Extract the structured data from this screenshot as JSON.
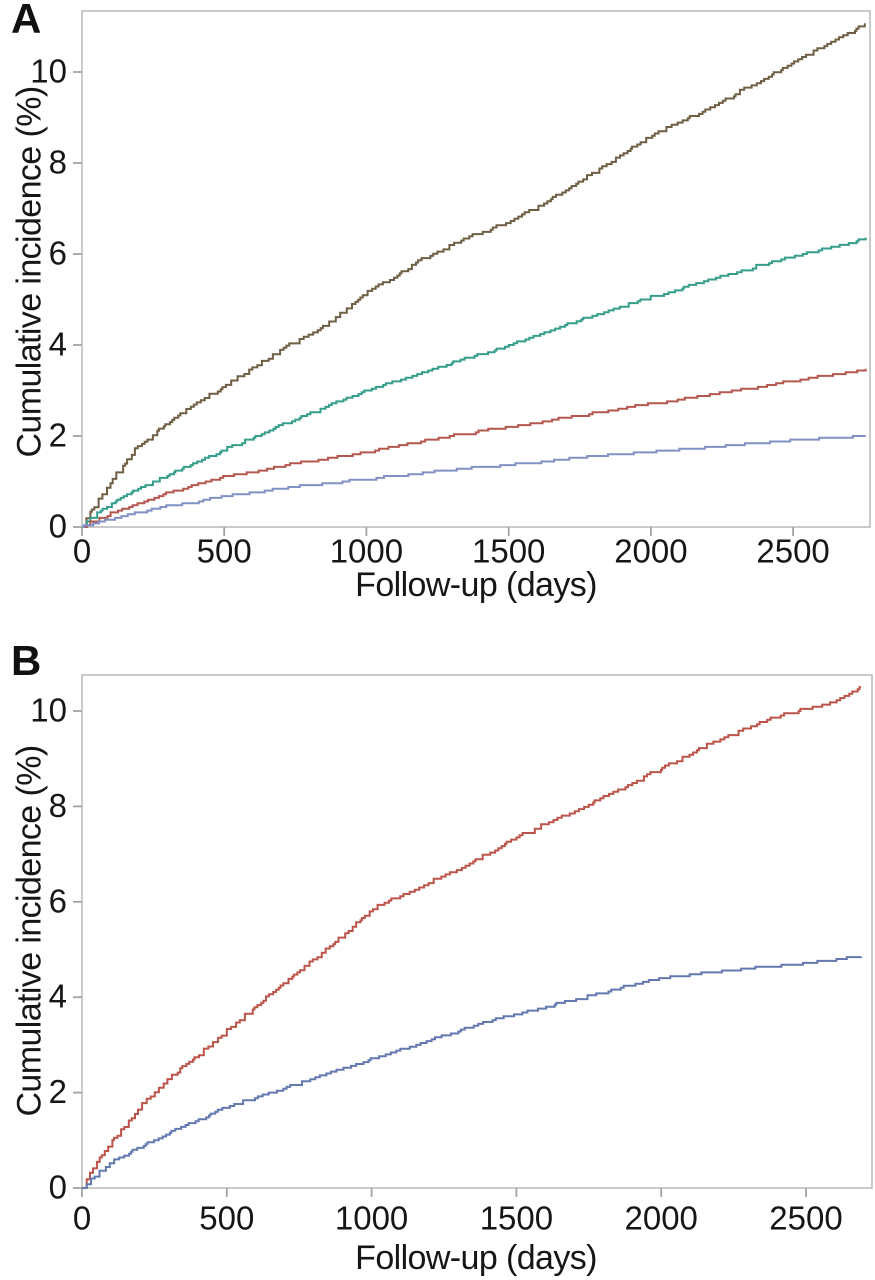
{
  "colors": {
    "frame": "#bdbdbd",
    "tick": "#a3a3a3",
    "text": "#161616",
    "background": "#ffffff"
  },
  "chart_data": [
    {
      "panel_label": "A",
      "type": "line",
      "line_style": "step",
      "title": "",
      "xlabel": "Follow-up (days)",
      "ylabel": "Cumulative incidence (%)",
      "x_ticks": [
        0,
        500,
        1000,
        1500,
        2000,
        2500
      ],
      "y_ticks": [
        0,
        2,
        4,
        6,
        8,
        10
      ],
      "xlim": [
        0,
        2766
      ],
      "ylim": [
        0,
        11.35
      ],
      "grid": false,
      "legend": "none",
      "series": [
        {
          "name": "curve-brown",
          "color": "#6e5f44",
          "data": [
            [
              0,
              0
            ],
            [
              25,
              0.3
            ],
            [
              100,
              1.0
            ],
            [
              200,
              1.8
            ],
            [
              350,
              2.5
            ],
            [
              500,
              3.1
            ],
            [
              700,
              3.9
            ],
            [
              850,
              4.4
            ],
            [
              950,
              4.9
            ],
            [
              1000,
              5.15
            ],
            [
              1200,
              5.9
            ],
            [
              1350,
              6.35
            ],
            [
              1500,
              6.7
            ],
            [
              1700,
              7.4
            ],
            [
              2000,
              8.6
            ],
            [
              2200,
              9.2
            ],
            [
              2350,
              9.7
            ],
            [
              2500,
              10.2
            ],
            [
              2650,
              10.7
            ],
            [
              2755,
              11.05
            ]
          ]
        },
        {
          "name": "curve-teal",
          "color": "#359d8b",
          "data": [
            [
              0,
              0
            ],
            [
              50,
              0.3
            ],
            [
              200,
              0.85
            ],
            [
              500,
              1.7
            ],
            [
              800,
              2.5
            ],
            [
              1000,
              3.0
            ],
            [
              1300,
              3.6
            ],
            [
              1500,
              4.0
            ],
            [
              1800,
              4.65
            ],
            [
              2000,
              5.05
            ],
            [
              2300,
              5.6
            ],
            [
              2500,
              5.95
            ],
            [
              2700,
              6.25
            ],
            [
              2755,
              6.35
            ]
          ]
        },
        {
          "name": "curve-red",
          "color": "#b3574f",
          "data": [
            [
              0,
              0
            ],
            [
              100,
              0.3
            ],
            [
              300,
              0.75
            ],
            [
              500,
              1.1
            ],
            [
              800,
              1.45
            ],
            [
              1000,
              1.65
            ],
            [
              1300,
              2.0
            ],
            [
              1500,
              2.2
            ],
            [
              1800,
              2.5
            ],
            [
              2000,
              2.7
            ],
            [
              2300,
              3.0
            ],
            [
              2500,
              3.2
            ],
            [
              2755,
              3.45
            ]
          ]
        },
        {
          "name": "curve-blue",
          "color": "#8291c4",
          "data": [
            [
              0,
              0
            ],
            [
              100,
              0.18
            ],
            [
              300,
              0.45
            ],
            [
              500,
              0.68
            ],
            [
              800,
              0.92
            ],
            [
              1000,
              1.05
            ],
            [
              1300,
              1.25
            ],
            [
              1500,
              1.35
            ],
            [
              1800,
              1.55
            ],
            [
              2000,
              1.65
            ],
            [
              2300,
              1.8
            ],
            [
              2500,
              1.9
            ],
            [
              2755,
              2.0
            ]
          ]
        }
      ]
    },
    {
      "panel_label": "B",
      "type": "line",
      "line_style": "step",
      "title": "",
      "xlabel": "Follow-up (days)",
      "ylabel": "Cumulative incidence (%)",
      "x_ticks": [
        0,
        500,
        1000,
        1500,
        2000,
        2500
      ],
      "y_ticks": [
        0,
        2,
        4,
        6,
        8,
        10
      ],
      "xlim": [
        0,
        2728
      ],
      "ylim": [
        0,
        10.75
      ],
      "grid": false,
      "legend": "none",
      "series": [
        {
          "name": "curve-red",
          "color": "#bc544a",
          "data": [
            [
              0,
              0
            ],
            [
              50,
              0.55
            ],
            [
              100,
              0.95
            ],
            [
              200,
              1.7
            ],
            [
              300,
              2.3
            ],
            [
              500,
              3.3
            ],
            [
              700,
              4.3
            ],
            [
              900,
              5.3
            ],
            [
              1000,
              5.85
            ],
            [
              1200,
              6.4
            ],
            [
              1400,
              7.0
            ],
            [
              1500,
              7.35
            ],
            [
              1700,
              7.9
            ],
            [
              2000,
              8.8
            ],
            [
              2200,
              9.4
            ],
            [
              2400,
              9.9
            ],
            [
              2600,
              10.2
            ],
            [
              2690,
              10.5
            ]
          ]
        },
        {
          "name": "curve-blue",
          "color": "#6478b0",
          "data": [
            [
              0,
              0
            ],
            [
              100,
              0.55
            ],
            [
              300,
              1.15
            ],
            [
              500,
              1.7
            ],
            [
              700,
              2.1
            ],
            [
              900,
              2.5
            ],
            [
              1000,
              2.7
            ],
            [
              1200,
              3.1
            ],
            [
              1400,
              3.5
            ],
            [
              1500,
              3.65
            ],
            [
              1800,
              4.1
            ],
            [
              2000,
              4.4
            ],
            [
              2300,
              4.6
            ],
            [
              2500,
              4.7
            ],
            [
              2690,
              4.85
            ]
          ]
        }
      ]
    }
  ]
}
